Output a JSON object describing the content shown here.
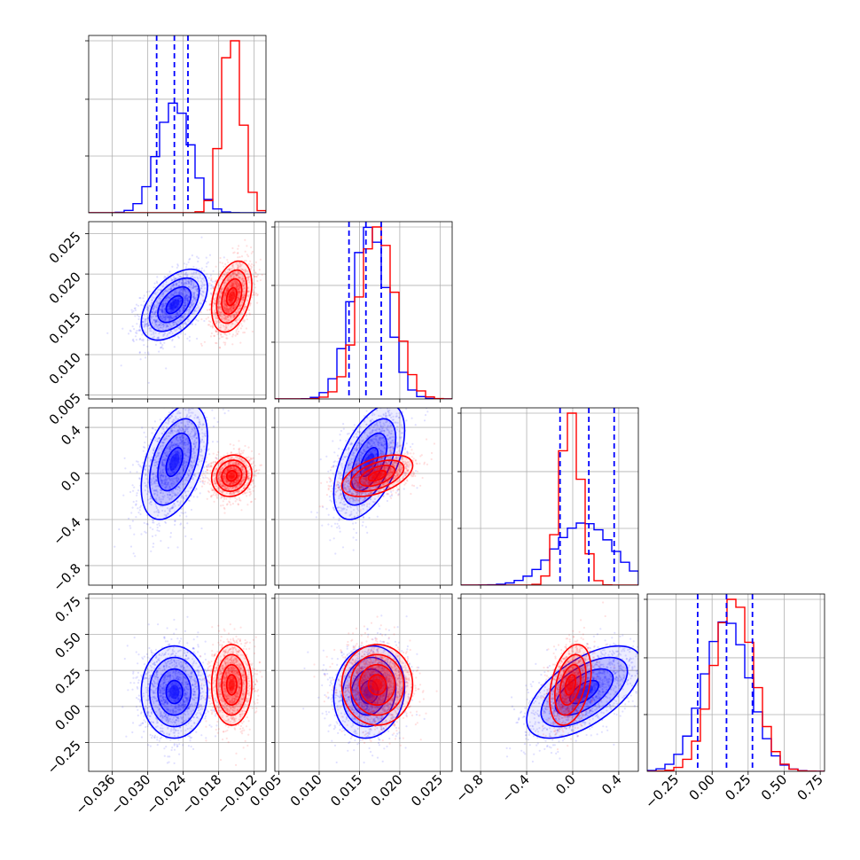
{
  "chart_data": {
    "type": "corner",
    "title": "",
    "grid": true,
    "parameters": [
      {
        "index": 0,
        "range": [
          -0.04,
          -0.01
        ],
        "ticks": [
          -0.036,
          -0.03,
          -0.024,
          -0.018,
          -0.012
        ],
        "tick_labels": [
          "−0.036",
          "−0.030",
          "−0.024",
          "−0.018",
          "−0.012"
        ]
      },
      {
        "index": 1,
        "range": [
          0.0045,
          0.0265
        ],
        "ticks": [
          0.005,
          0.01,
          0.015,
          0.02,
          0.025
        ],
        "tick_labels": [
          "0.005",
          "0.010",
          "0.015",
          "0.020",
          "0.025"
        ]
      },
      {
        "index": 2,
        "range": [
          -0.97,
          0.57
        ],
        "ticks": [
          -0.8,
          -0.4,
          0.0,
          0.4
        ],
        "tick_labels": [
          "−0.8",
          "−0.4",
          "0.0",
          "0.4"
        ]
      },
      {
        "index": 3,
        "range": [
          -0.45,
          0.78
        ],
        "ticks": [
          -0.25,
          0.0,
          0.25,
          0.5,
          0.75
        ],
        "tick_labels": [
          "−0.25",
          "0.00",
          "0.25",
          "0.50",
          "0.75"
        ]
      }
    ],
    "series": [
      {
        "color": "#0000ff",
        "means": [
          -0.0255,
          0.0162,
          0.1,
          0.1
        ],
        "sds": [
          0.0028,
          0.0022,
          0.25,
          0.16
        ],
        "correlations": [
          [
            0,
            1,
            0.5
          ],
          [
            0,
            2,
            0.45
          ],
          [
            0,
            3,
            0.0
          ],
          [
            1,
            2,
            0.55
          ],
          [
            1,
            3,
            0.1
          ],
          [
            2,
            3,
            0.6
          ]
        ],
        "quantiles": [
          [
            -0.0285,
            -0.0255,
            -0.0232
          ],
          [
            0.0137,
            0.0158,
            0.0177
          ],
          [
            -0.11,
            0.14,
            0.36
          ],
          [
            -0.1,
            0.1,
            0.28
          ]
        ]
      },
      {
        "color": "#ff0000",
        "means": [
          -0.0158,
          0.0172,
          -0.02,
          0.15
        ],
        "sds": [
          0.0017,
          0.0022,
          0.09,
          0.14
        ],
        "correlations": [
          [
            0,
            1,
            0.35
          ],
          [
            0,
            2,
            0.1
          ],
          [
            0,
            3,
            0.0
          ],
          [
            1,
            2,
            0.5
          ],
          [
            1,
            3,
            0.0
          ],
          [
            2,
            3,
            0.35
          ]
        ],
        "quantiles": []
      }
    ]
  }
}
